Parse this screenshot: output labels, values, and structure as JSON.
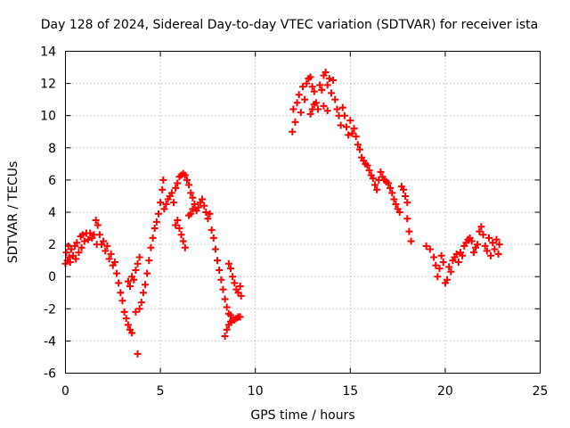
{
  "chart_data": {
    "type": "scatter",
    "title": "Day 128 of 2024, Sidereal Day-to-day VTEC variation (SDTVAR) for receiver ista",
    "xlabel": "GPS time / hours",
    "ylabel": "SDTVAR / TECUs",
    "xlim": [
      0,
      25
    ],
    "ylim": [
      -6,
      14
    ],
    "xticks": [
      0,
      5,
      10,
      15,
      20,
      25
    ],
    "yticks": [
      -6,
      -4,
      -2,
      0,
      2,
      4,
      6,
      8,
      10,
      12,
      14
    ],
    "grid": true,
    "marker": "+",
    "color": "#ff0000",
    "series": [
      {
        "name": "SDTVAR",
        "points": [
          [
            0.0,
            0.8
          ],
          [
            0.05,
            1.5
          ],
          [
            0.1,
            1.0
          ],
          [
            0.15,
            1.9
          ],
          [
            0.2,
            1.2
          ],
          [
            0.25,
            0.9
          ],
          [
            0.3,
            1.7
          ],
          [
            0.4,
            1.3
          ],
          [
            0.5,
            1.9
          ],
          [
            0.55,
            1.1
          ],
          [
            0.6,
            2.1
          ],
          [
            0.7,
            1.5
          ],
          [
            0.8,
            2.5
          ],
          [
            0.85,
            1.8
          ],
          [
            0.9,
            2.6
          ],
          [
            1.0,
            2.2
          ],
          [
            1.1,
            2.7
          ],
          [
            1.2,
            2.3
          ],
          [
            1.3,
            2.7
          ],
          [
            1.4,
            2.4
          ],
          [
            1.5,
            2.6
          ],
          [
            1.6,
            3.5
          ],
          [
            1.65,
            2.0
          ],
          [
            1.7,
            3.2
          ],
          [
            1.8,
            2.6
          ],
          [
            1.9,
            2.0
          ],
          [
            2.0,
            2.2
          ],
          [
            2.1,
            1.6
          ],
          [
            2.2,
            1.9
          ],
          [
            2.3,
            1.1
          ],
          [
            2.4,
            1.4
          ],
          [
            2.5,
            0.7
          ],
          [
            2.6,
            0.9
          ],
          [
            2.7,
            0.2
          ],
          [
            2.8,
            -0.4
          ],
          [
            2.9,
            -1.0
          ],
          [
            3.0,
            -1.5
          ],
          [
            3.1,
            -2.2
          ],
          [
            3.2,
            -2.6
          ],
          [
            3.3,
            -3.0
          ],
          [
            3.4,
            -3.3
          ],
          [
            3.5,
            -3.5
          ],
          [
            3.3,
            -0.3
          ],
          [
            3.4,
            -0.6
          ],
          [
            3.5,
            0.0
          ],
          [
            3.6,
            -0.2
          ],
          [
            3.7,
            0.4
          ],
          [
            3.8,
            0.8
          ],
          [
            3.9,
            1.2
          ],
          [
            3.7,
            -2.2
          ],
          [
            3.8,
            -4.8
          ],
          [
            3.9,
            -2.0
          ],
          [
            4.0,
            -1.6
          ],
          [
            4.1,
            -1.0
          ],
          [
            4.2,
            -0.5
          ],
          [
            4.3,
            0.2
          ],
          [
            4.4,
            1.0
          ],
          [
            4.5,
            1.8
          ],
          [
            4.6,
            2.4
          ],
          [
            4.7,
            3.0
          ],
          [
            4.8,
            3.4
          ],
          [
            4.9,
            3.9
          ],
          [
            5.0,
            4.6
          ],
          [
            5.1,
            5.4
          ],
          [
            5.15,
            6.0
          ],
          [
            5.2,
            4.2
          ],
          [
            5.3,
            4.5
          ],
          [
            5.4,
            4.8
          ],
          [
            5.5,
            5.0
          ],
          [
            5.6,
            5.2
          ],
          [
            5.7,
            4.6
          ],
          [
            5.8,
            5.5
          ],
          [
            5.9,
            5.8
          ],
          [
            6.0,
            6.2
          ],
          [
            6.1,
            6.3
          ],
          [
            6.2,
            6.4
          ],
          [
            6.3,
            6.3
          ],
          [
            6.4,
            6.0
          ],
          [
            6.5,
            5.7
          ],
          [
            6.6,
            5.2
          ],
          [
            6.7,
            4.9
          ],
          [
            5.8,
            3.2
          ],
          [
            5.9,
            3.5
          ],
          [
            6.0,
            3.0
          ],
          [
            6.1,
            2.6
          ],
          [
            6.2,
            2.2
          ],
          [
            6.3,
            1.8
          ],
          [
            6.5,
            3.8
          ],
          [
            6.6,
            3.9
          ],
          [
            6.7,
            4.2
          ],
          [
            6.8,
            4.5
          ],
          [
            6.9,
            4.1
          ],
          [
            7.0,
            4.3
          ],
          [
            7.1,
            4.6
          ],
          [
            7.2,
            4.8
          ],
          [
            7.3,
            4.4
          ],
          [
            7.4,
            4.0
          ],
          [
            7.5,
            3.6
          ],
          [
            7.6,
            3.9
          ],
          [
            7.7,
            2.9
          ],
          [
            7.8,
            2.4
          ],
          [
            7.9,
            1.7
          ],
          [
            8.0,
            1.0
          ],
          [
            8.1,
            0.4
          ],
          [
            8.2,
            -0.2
          ],
          [
            8.3,
            -0.8
          ],
          [
            8.4,
            -1.4
          ],
          [
            8.5,
            -1.9
          ],
          [
            8.6,
            -2.3
          ],
          [
            8.7,
            -2.4
          ],
          [
            8.4,
            -3.7
          ],
          [
            8.5,
            -3.3
          ],
          [
            8.6,
            -3.0
          ],
          [
            8.7,
            -2.8
          ],
          [
            8.8,
            -2.7
          ],
          [
            8.9,
            -2.7
          ],
          [
            9.0,
            -2.6
          ],
          [
            9.1,
            -2.5
          ],
          [
            9.2,
            -2.5
          ],
          [
            8.6,
            0.8
          ],
          [
            8.7,
            0.5
          ],
          [
            8.8,
            0.0
          ],
          [
            8.9,
            -0.4
          ],
          [
            9.0,
            -0.8
          ],
          [
            9.1,
            -1.0
          ],
          [
            9.2,
            -0.6
          ],
          [
            9.25,
            -1.2
          ],
          [
            11.95,
            9.0
          ],
          [
            12.0,
            10.4
          ],
          [
            12.1,
            9.6
          ],
          [
            12.2,
            10.8
          ],
          [
            12.3,
            11.3
          ],
          [
            12.4,
            10.2
          ],
          [
            12.5,
            11.8
          ],
          [
            12.6,
            11.0
          ],
          [
            12.7,
            12.0
          ],
          [
            12.8,
            12.3
          ],
          [
            12.9,
            12.4
          ],
          [
            13.0,
            11.8
          ],
          [
            13.1,
            11.5
          ],
          [
            13.2,
            10.8
          ],
          [
            13.3,
            10.4
          ],
          [
            12.9,
            10.1
          ],
          [
            13.0,
            10.4
          ],
          [
            13.1,
            10.7
          ],
          [
            13.4,
            11.9
          ],
          [
            13.5,
            11.6
          ],
          [
            13.6,
            12.5
          ],
          [
            13.7,
            12.7
          ],
          [
            13.8,
            11.9
          ],
          [
            13.9,
            12.3
          ],
          [
            14.0,
            11.4
          ],
          [
            14.1,
            12.2
          ],
          [
            14.2,
            11.0
          ],
          [
            14.3,
            10.4
          ],
          [
            13.6,
            10.6
          ],
          [
            13.8,
            10.3
          ],
          [
            14.4,
            10.0
          ],
          [
            14.5,
            9.4
          ],
          [
            14.6,
            10.5
          ],
          [
            14.7,
            10.0
          ],
          [
            14.8,
            9.3
          ],
          [
            14.9,
            8.8
          ],
          [
            15.0,
            9.7
          ],
          [
            15.1,
            8.9
          ],
          [
            15.2,
            9.2
          ],
          [
            15.3,
            8.7
          ],
          [
            15.4,
            8.2
          ],
          [
            15.5,
            7.9
          ],
          [
            15.6,
            7.4
          ],
          [
            15.7,
            7.2
          ],
          [
            15.8,
            7.0
          ],
          [
            15.9,
            6.9
          ],
          [
            16.0,
            6.6
          ],
          [
            16.1,
            6.3
          ],
          [
            16.2,
            6.1
          ],
          [
            16.3,
            5.7
          ],
          [
            16.4,
            5.4
          ],
          [
            16.5,
            6.0
          ],
          [
            16.6,
            6.5
          ],
          [
            16.7,
            6.2
          ],
          [
            16.8,
            6.0
          ],
          [
            16.9,
            5.9
          ],
          [
            17.0,
            5.8
          ],
          [
            17.1,
            5.5
          ],
          [
            17.2,
            5.2
          ],
          [
            17.3,
            4.8
          ],
          [
            17.4,
            4.5
          ],
          [
            17.5,
            4.2
          ],
          [
            17.6,
            4.0
          ],
          [
            17.7,
            5.6
          ],
          [
            17.8,
            5.4
          ],
          [
            17.9,
            5.0
          ],
          [
            18.0,
            4.6
          ],
          [
            18.1,
            2.8
          ],
          [
            18.2,
            2.2
          ],
          [
            18.0,
            3.6
          ],
          [
            19.0,
            1.9
          ],
          [
            19.2,
            1.7
          ],
          [
            19.4,
            1.2
          ],
          [
            19.5,
            0.7
          ],
          [
            19.6,
            0.0
          ],
          [
            19.7,
            0.5
          ],
          [
            19.8,
            1.3
          ],
          [
            19.9,
            0.9
          ],
          [
            20.0,
            -0.4
          ],
          [
            20.1,
            -0.2
          ],
          [
            20.2,
            0.6
          ],
          [
            20.3,
            0.3
          ],
          [
            20.4,
            1.0
          ],
          [
            20.5,
            1.2
          ],
          [
            20.6,
            1.4
          ],
          [
            20.7,
            0.9
          ],
          [
            20.8,
            1.5
          ],
          [
            20.9,
            1.3
          ],
          [
            21.0,
            1.9
          ],
          [
            21.1,
            2.1
          ],
          [
            21.2,
            2.3
          ],
          [
            21.3,
            2.4
          ],
          [
            21.4,
            2.2
          ],
          [
            21.5,
            1.5
          ],
          [
            21.6,
            1.8
          ],
          [
            21.7,
            2.0
          ],
          [
            21.8,
            2.8
          ],
          [
            21.9,
            3.1
          ],
          [
            22.0,
            2.6
          ],
          [
            22.1,
            1.9
          ],
          [
            22.2,
            1.6
          ],
          [
            22.3,
            2.4
          ],
          [
            22.4,
            1.3
          ],
          [
            22.5,
            2.1
          ],
          [
            22.6,
            1.7
          ],
          [
            22.7,
            2.3
          ],
          [
            22.8,
            1.4
          ],
          [
            22.85,
            2.0
          ]
        ]
      }
    ]
  }
}
